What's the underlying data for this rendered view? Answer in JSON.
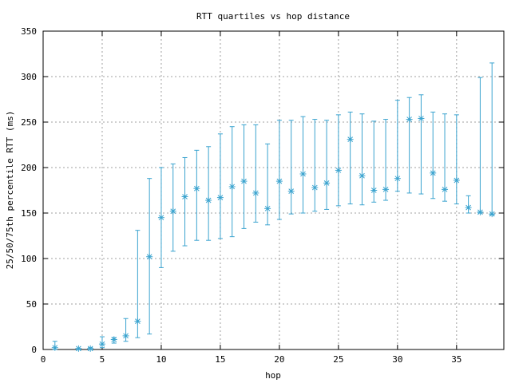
{
  "chart_data": {
    "type": "scatter",
    "title": "RTT quartiles vs hop distance",
    "xlabel": "hop",
    "ylabel": "25/50/75th percentile RTT (ms)",
    "xlim": [
      0,
      39
    ],
    "ylim": [
      0,
      350
    ],
    "xticks": [
      0,
      5,
      10,
      15,
      20,
      25,
      30,
      35
    ],
    "yticks": [
      0,
      50,
      100,
      150,
      200,
      250,
      300,
      350
    ],
    "grid": true,
    "series": [
      {
        "style": "errorbars",
        "color": "#3aa3cf",
        "points": [
          {
            "hop": 1,
            "p25": 0,
            "median": 2,
            "p75": 9
          },
          {
            "hop": 3,
            "p25": 0,
            "median": 1,
            "p75": 1
          },
          {
            "hop": 4,
            "p25": 0,
            "median": 1,
            "p75": 2
          },
          {
            "hop": 5,
            "p25": 2,
            "median": 6,
            "p75": 14
          },
          {
            "hop": 6,
            "p25": 7,
            "median": 11,
            "p75": 13
          },
          {
            "hop": 7,
            "p25": 9,
            "median": 15,
            "p75": 34
          },
          {
            "hop": 8,
            "p25": 13,
            "median": 31,
            "p75": 131
          },
          {
            "hop": 9,
            "p25": 17,
            "median": 102,
            "p75": 188
          },
          {
            "hop": 10,
            "p25": 90,
            "median": 145,
            "p75": 200
          },
          {
            "hop": 11,
            "p25": 108,
            "median": 152,
            "p75": 204
          },
          {
            "hop": 12,
            "p25": 114,
            "median": 168,
            "p75": 211
          },
          {
            "hop": 13,
            "p25": 120,
            "median": 177,
            "p75": 219
          },
          {
            "hop": 14,
            "p25": 120,
            "median": 164,
            "p75": 223
          },
          {
            "hop": 15,
            "p25": 122,
            "median": 167,
            "p75": 237
          },
          {
            "hop": 16,
            "p25": 124,
            "median": 179,
            "p75": 245
          },
          {
            "hop": 17,
            "p25": 133,
            "median": 185,
            "p75": 247
          },
          {
            "hop": 18,
            "p25": 140,
            "median": 172,
            "p75": 247
          },
          {
            "hop": 19,
            "p25": 137,
            "median": 155,
            "p75": 226
          },
          {
            "hop": 20,
            "p25": 143,
            "median": 185,
            "p75": 252
          },
          {
            "hop": 21,
            "p25": 149,
            "median": 174,
            "p75": 252
          },
          {
            "hop": 22,
            "p25": 150,
            "median": 193,
            "p75": 256
          },
          {
            "hop": 23,
            "p25": 152,
            "median": 178,
            "p75": 253
          },
          {
            "hop": 24,
            "p25": 154,
            "median": 183,
            "p75": 252
          },
          {
            "hop": 25,
            "p25": 158,
            "median": 197,
            "p75": 258
          },
          {
            "hop": 26,
            "p25": 160,
            "median": 231,
            "p75": 261
          },
          {
            "hop": 27,
            "p25": 159,
            "median": 191,
            "p75": 259
          },
          {
            "hop": 28,
            "p25": 162,
            "median": 175,
            "p75": 251
          },
          {
            "hop": 29,
            "p25": 164,
            "median": 176,
            "p75": 253
          },
          {
            "hop": 30,
            "p25": 174,
            "median": 188,
            "p75": 274
          },
          {
            "hop": 31,
            "p25": 172,
            "median": 253,
            "p75": 277
          },
          {
            "hop": 32,
            "p25": 171,
            "median": 254,
            "p75": 280
          },
          {
            "hop": 33,
            "p25": 166,
            "median": 194,
            "p75": 261
          },
          {
            "hop": 34,
            "p25": 163,
            "median": 176,
            "p75": 259
          },
          {
            "hop": 35,
            "p25": 160,
            "median": 186,
            "p75": 258
          },
          {
            "hop": 36,
            "p25": 150,
            "median": 156,
            "p75": 169
          },
          {
            "hop": 37,
            "p25": 150,
            "median": 151,
            "p75": 299
          },
          {
            "hop": 38,
            "p25": 148,
            "median": 149,
            "p75": 315
          }
        ]
      }
    ]
  }
}
